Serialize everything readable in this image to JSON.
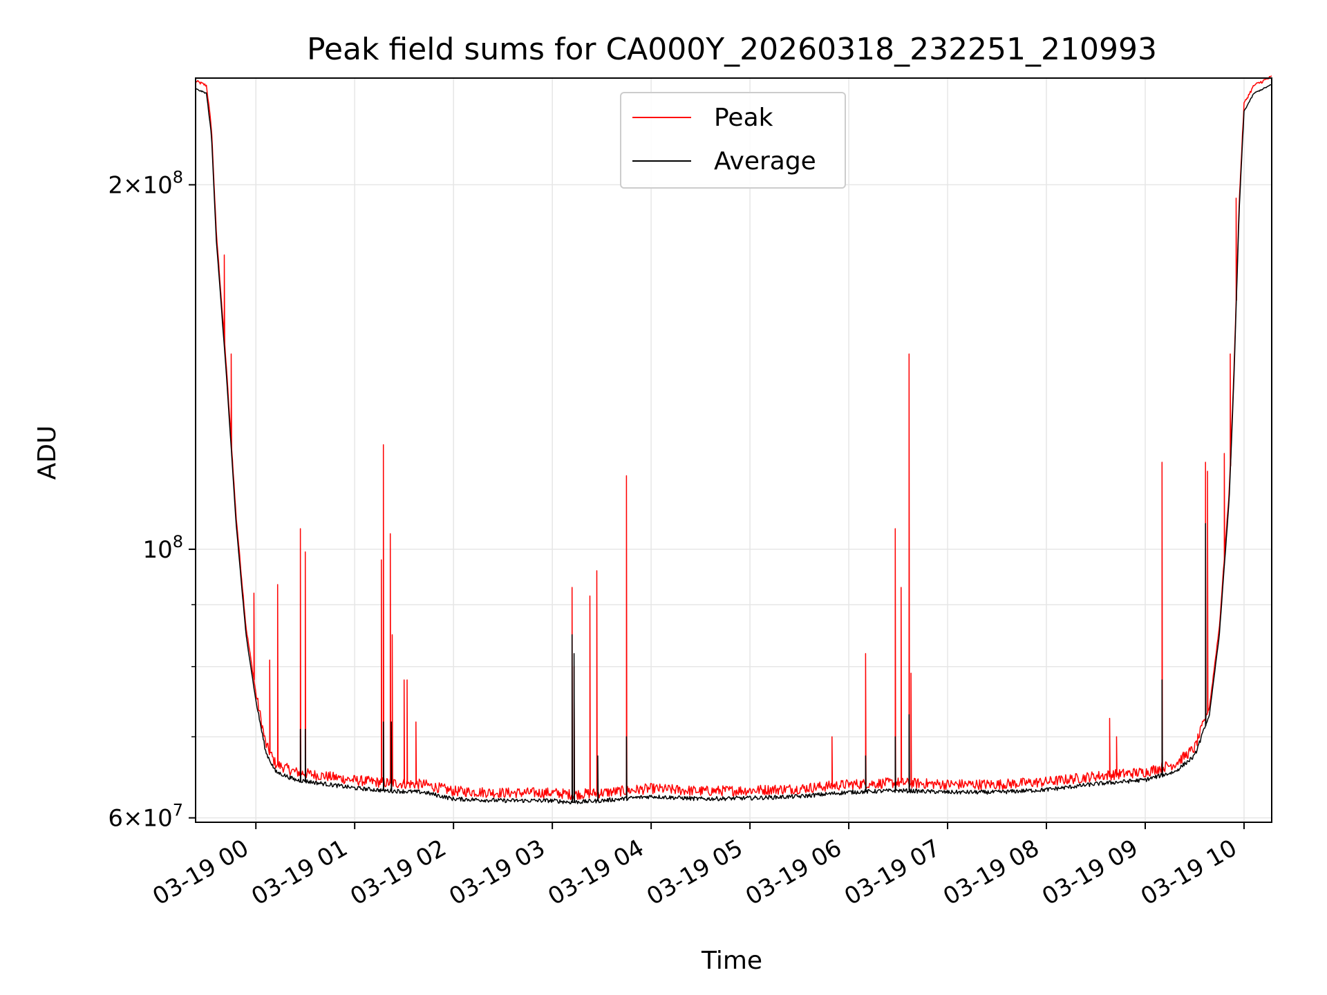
{
  "chart_data": {
    "type": "line",
    "title": "Peak field sums for CA000Y_20260318_232251_210993",
    "xlabel": "Time",
    "ylabel": "ADU",
    "yscale": "log",
    "ylim": [
      59500000,
      245000000
    ],
    "xlim_hours": [
      -0.61,
      10.28
    ],
    "grid": true,
    "legend_position": "upper center",
    "x_ticks": [
      {
        "hour": 0,
        "label": "03-19 00"
      },
      {
        "hour": 1,
        "label": "03-19 01"
      },
      {
        "hour": 2,
        "label": "03-19 02"
      },
      {
        "hour": 3,
        "label": "03-19 03"
      },
      {
        "hour": 4,
        "label": "03-19 04"
      },
      {
        "hour": 5,
        "label": "03-19 05"
      },
      {
        "hour": 6,
        "label": "03-19 06"
      },
      {
        "hour": 7,
        "label": "03-19 07"
      },
      {
        "hour": 8,
        "label": "03-19 08"
      },
      {
        "hour": 9,
        "label": "03-19 09"
      },
      {
        "hour": 10,
        "label": "03-19 10"
      }
    ],
    "y_major_ticks": [
      {
        "value": 60000000,
        "base": "6×10",
        "exp": "7"
      },
      {
        "value": 100000000,
        "base": "10",
        "exp": "8"
      },
      {
        "value": 200000000,
        "base": "2×10",
        "exp": "8"
      }
    ],
    "y_minor_gridlines": [
      70000000,
      80000000,
      90000000
    ],
    "series": [
      {
        "name": "Peak",
        "color": "#ff0000"
      },
      {
        "name": "Average",
        "color": "#000000"
      }
    ],
    "average_curve": [
      [
        -0.61,
        240000000
      ],
      [
        -0.5,
        238000000
      ],
      [
        -0.45,
        220000000
      ],
      [
        -0.4,
        180000000
      ],
      [
        -0.3,
        140000000
      ],
      [
        -0.2,
        105000000
      ],
      [
        -0.1,
        85000000
      ],
      [
        0.0,
        75000000
      ],
      [
        0.1,
        68000000
      ],
      [
        0.2,
        65500000
      ],
      [
        0.4,
        64500000
      ],
      [
        0.7,
        64000000
      ],
      [
        1.0,
        63500000
      ],
      [
        1.3,
        63200000
      ],
      [
        1.7,
        63000000
      ],
      [
        2.0,
        62200000
      ],
      [
        2.5,
        62000000
      ],
      [
        3.0,
        62000000
      ],
      [
        3.2,
        61800000
      ],
      [
        3.5,
        62000000
      ],
      [
        4.0,
        62500000
      ],
      [
        4.5,
        62200000
      ],
      [
        5.0,
        62300000
      ],
      [
        5.5,
        62500000
      ],
      [
        6.0,
        63000000
      ],
      [
        6.5,
        63200000
      ],
      [
        7.0,
        63000000
      ],
      [
        7.5,
        63000000
      ],
      [
        8.0,
        63300000
      ],
      [
        8.5,
        64000000
      ],
      [
        9.0,
        64500000
      ],
      [
        9.3,
        65500000
      ],
      [
        9.5,
        67500000
      ],
      [
        9.65,
        73000000
      ],
      [
        9.75,
        85000000
      ],
      [
        9.85,
        110000000
      ],
      [
        9.9,
        140000000
      ],
      [
        9.95,
        190000000
      ],
      [
        10.0,
        230000000
      ],
      [
        10.1,
        238000000
      ],
      [
        10.28,
        242000000
      ]
    ],
    "peak_offset_ratio": 1.015,
    "peak_spikes": [
      {
        "hour": -0.32,
        "value": 175000000
      },
      {
        "hour": -0.25,
        "value": 145000000
      },
      {
        "hour": -0.02,
        "value": 92000000
      },
      {
        "hour": 0.14,
        "value": 81000000
      },
      {
        "hour": 0.22,
        "value": 93500000
      },
      {
        "hour": 0.45,
        "value": 104000000
      },
      {
        "hour": 0.5,
        "value": 99500000
      },
      {
        "hour": 1.27,
        "value": 98000000
      },
      {
        "hour": 1.29,
        "value": 122000000
      },
      {
        "hour": 1.36,
        "value": 103000000
      },
      {
        "hour": 1.38,
        "value": 85000000
      },
      {
        "hour": 1.5,
        "value": 78000000
      },
      {
        "hour": 1.53,
        "value": 78000000
      },
      {
        "hour": 1.62,
        "value": 72000000
      },
      {
        "hour": 3.2,
        "value": 93000000
      },
      {
        "hour": 3.22,
        "value": 80000000
      },
      {
        "hour": 3.38,
        "value": 91500000
      },
      {
        "hour": 3.45,
        "value": 96000000
      },
      {
        "hour": 3.75,
        "value": 115000000
      },
      {
        "hour": 5.83,
        "value": 70000000
      },
      {
        "hour": 6.17,
        "value": 82000000
      },
      {
        "hour": 6.47,
        "value": 104000000
      },
      {
        "hour": 6.53,
        "value": 93000000
      },
      {
        "hour": 6.61,
        "value": 145000000
      },
      {
        "hour": 6.63,
        "value": 79000000
      },
      {
        "hour": 8.64,
        "value": 72500000
      },
      {
        "hour": 8.71,
        "value": 70000000
      },
      {
        "hour": 9.17,
        "value": 118000000
      },
      {
        "hour": 9.61,
        "value": 118000000
      },
      {
        "hour": 9.63,
        "value": 116000000
      },
      {
        "hour": 9.8,
        "value": 120000000
      },
      {
        "hour": 9.86,
        "value": 145000000
      },
      {
        "hour": 9.92,
        "value": 195000000
      }
    ],
    "average_spikes": [
      {
        "hour": 0.45,
        "value": 71000000
      },
      {
        "hour": 0.5,
        "value": 71000000
      },
      {
        "hour": 1.29,
        "value": 72000000
      },
      {
        "hour": 1.37,
        "value": 72000000
      },
      {
        "hour": 3.2,
        "value": 85000000
      },
      {
        "hour": 3.22,
        "value": 82000000
      },
      {
        "hour": 3.46,
        "value": 67500000
      },
      {
        "hour": 3.75,
        "value": 70000000
      },
      {
        "hour": 6.17,
        "value": 67500000
      },
      {
        "hour": 6.47,
        "value": 70000000
      },
      {
        "hour": 6.61,
        "value": 73000000
      },
      {
        "hour": 9.17,
        "value": 78000000
      },
      {
        "hour": 9.61,
        "value": 105000000
      }
    ]
  }
}
